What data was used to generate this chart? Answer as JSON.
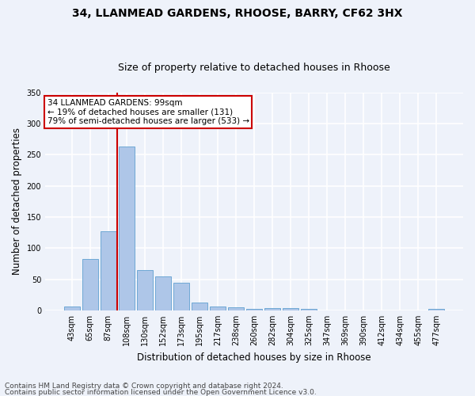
{
  "title_line1": "34, LLANMEAD GARDENS, RHOOSE, BARRY, CF62 3HX",
  "title_line2": "Size of property relative to detached houses in Rhoose",
  "xlabel": "Distribution of detached houses by size in Rhoose",
  "ylabel": "Number of detached properties",
  "footer_line1": "Contains HM Land Registry data © Crown copyright and database right 2024.",
  "footer_line2": "Contains public sector information licensed under the Open Government Licence v3.0.",
  "categories": [
    "43sqm",
    "65sqm",
    "87sqm",
    "108sqm",
    "130sqm",
    "152sqm",
    "173sqm",
    "195sqm",
    "217sqm",
    "238sqm",
    "260sqm",
    "282sqm",
    "304sqm",
    "325sqm",
    "347sqm",
    "369sqm",
    "390sqm",
    "412sqm",
    "434sqm",
    "455sqm",
    "477sqm"
  ],
  "values": [
    6,
    82,
    127,
    263,
    65,
    55,
    44,
    12,
    6,
    5,
    3,
    4,
    4,
    2,
    0,
    0,
    0,
    0,
    0,
    0,
    2
  ],
  "bar_color": "#aec6e8",
  "bar_edge_color": "#6fa8d5",
  "vline_color": "#cc0000",
  "vline_x_index": 2.5,
  "annotation_text": "34 LLANMEAD GARDENS: 99sqm\n← 19% of detached houses are smaller (131)\n79% of semi-detached houses are larger (533) →",
  "annotation_box_color": "white",
  "annotation_box_edge": "#cc0000",
  "ylim": [
    0,
    350
  ],
  "yticks": [
    0,
    50,
    100,
    150,
    200,
    250,
    300,
    350
  ],
  "bg_color": "#eef2fa",
  "plot_bg_color": "#eef2fa",
  "grid_color": "white",
  "title_fontsize": 10,
  "subtitle_fontsize": 9,
  "tick_fontsize": 7,
  "ylabel_fontsize": 8.5,
  "xlabel_fontsize": 8.5,
  "annotation_fontsize": 7.5,
  "footer_fontsize": 6.5
}
